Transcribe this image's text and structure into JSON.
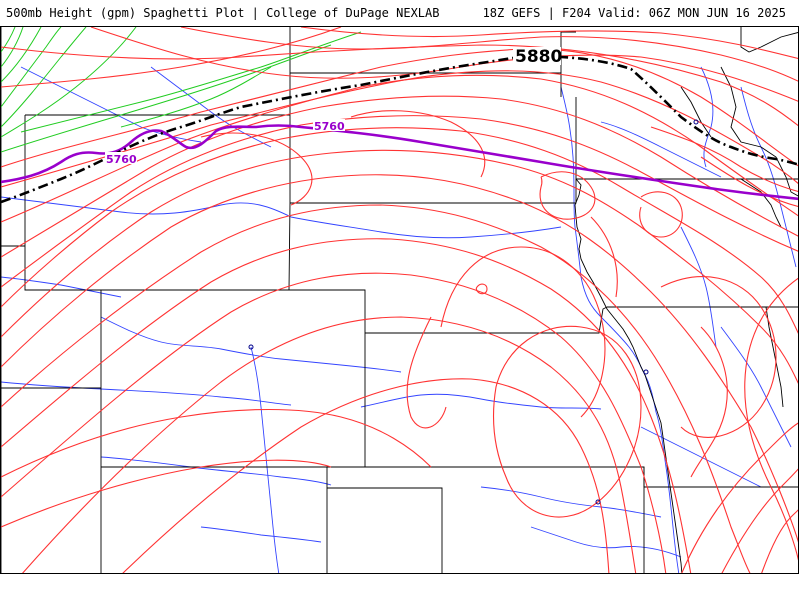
{
  "header": {
    "title_left": "500mb Height (gpm) Spaghetti Plot | College of DuPage NEXLAB",
    "title_right": "18Z GEFS | F204 Valid: 06Z MON JUN 16 2025"
  },
  "map": {
    "contour_labels": {
      "label_5880": "5880",
      "label_5760_a": "5760",
      "label_5760_b": "5760"
    },
    "colors": {
      "members": "#ff3333",
      "green_members": "#22cc22",
      "mean_5760": "#9900cc",
      "mean_5880": "#000000",
      "borders": "#000000",
      "rivers": "#3344ff"
    }
  }
}
